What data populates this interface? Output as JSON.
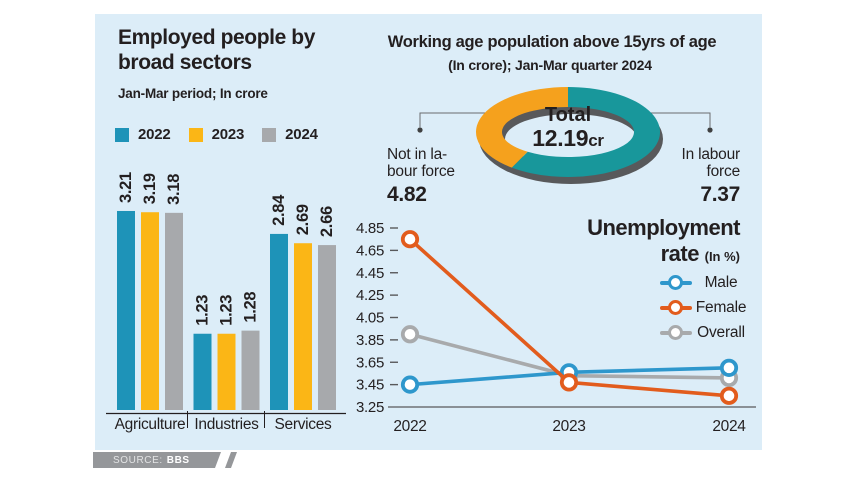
{
  "page": {
    "background": "#FFFFFF",
    "panel_background": "#DCEDF8"
  },
  "bar_section": {
    "title_lines": [
      "Employed people by",
      "broad sectors"
    ],
    "subtitle": "Jan-Mar period; In crore",
    "legend": [
      {
        "label": "2022",
        "color": "#1E93B8"
      },
      {
        "label": "2023",
        "color": "#FBB616"
      },
      {
        "label": "2024",
        "color": "#A7A9AC"
      }
    ]
  },
  "donut_section": {
    "title": "Working age population above 15yrs of age",
    "subtitle": "(In crore);  Jan-Mar quarter 2024",
    "center_label": "Total",
    "center_value": "12.19",
    "center_unit": "cr",
    "left": {
      "label_lines": [
        "Not in la-",
        "bour force"
      ],
      "value": "4.82"
    },
    "right": {
      "label_lines": [
        "In labour",
        "force"
      ],
      "value": "7.37"
    }
  },
  "line_section": {
    "title_line1": "Unemployment",
    "title_line2": "rate",
    "unit": "(In %)",
    "legend": [
      {
        "label": "Male",
        "color": "#2E97CC"
      },
      {
        "label": "Female",
        "color": "#E25C1D"
      },
      {
        "label": "Overall",
        "color": "#A8AAAC"
      }
    ]
  },
  "source": {
    "label": "SOURCE:",
    "value": "BBS"
  },
  "chart_data": [
    {
      "type": "bar",
      "title": "Employed people by broad sectors",
      "subtitle": "Jan-Mar period; In crore",
      "categories": [
        "Agriculture",
        "Industries",
        "Services"
      ],
      "series": [
        {
          "name": "2022",
          "color": "#1E93B8",
          "values": [
            3.21,
            1.23,
            2.84
          ]
        },
        {
          "name": "2023",
          "color": "#FBB616",
          "values": [
            3.19,
            1.23,
            2.69
          ]
        },
        {
          "name": "2024",
          "color": "#A7A9AC",
          "values": [
            3.18,
            1.28,
            2.66
          ]
        }
      ],
      "value_labels": true,
      "ylim": [
        0,
        3.5
      ],
      "grid": false,
      "legend_position": "top"
    },
    {
      "type": "pie",
      "title": "Working age population above 15yrs of age",
      "subtitle": "(In crore); Jan-Mar quarter 2024",
      "total_label": "Total",
      "total_value": "12.19cr",
      "slices": [
        {
          "label": "In labour force",
          "value": 7.37,
          "color": "#18979B"
        },
        {
          "label": "Not in labour force",
          "value": 4.82,
          "color": "#F5A11D"
        }
      ],
      "shadow_color": "#58595B"
    },
    {
      "type": "line",
      "title": "Unemployment rate",
      "unit": "In %",
      "x": [
        "2022",
        "2023",
        "2024"
      ],
      "yticks": [
        "3.25",
        "3.45",
        "3.65",
        "3.85",
        "4.05",
        "4.25",
        "4.45",
        "4.65",
        "4.85"
      ],
      "ylim": [
        3.25,
        4.85
      ],
      "grid": false,
      "legend_position": "right",
      "series": [
        {
          "name": "Overall",
          "color": "#A8AAAC",
          "values": [
            3.9,
            3.53,
            3.51
          ]
        },
        {
          "name": "Male",
          "color": "#2E97CC",
          "values": [
            3.45,
            3.56,
            3.6
          ]
        },
        {
          "name": "Female",
          "color": "#E25C1D",
          "values": [
            4.75,
            3.47,
            3.35
          ]
        }
      ]
    }
  ]
}
